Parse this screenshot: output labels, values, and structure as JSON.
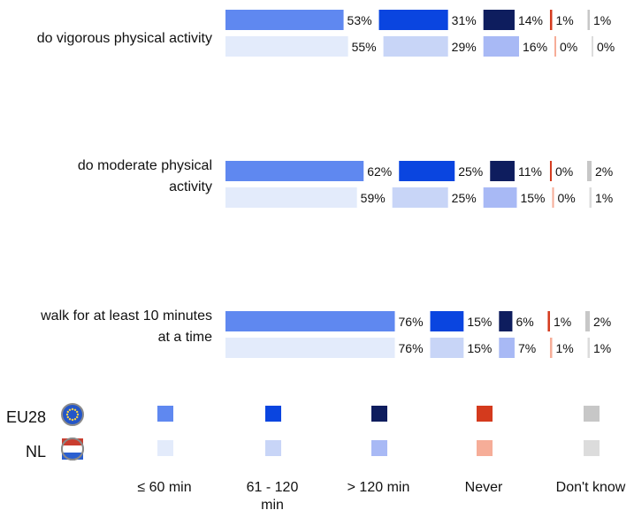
{
  "chart_data": {
    "type": "bar",
    "orientation": "horizontal",
    "stacked_layout": "segmented rows with value labels",
    "categories": [
      [
        "do vigorous physical activity"
      ],
      [
        "do moderate physical",
        "activity"
      ],
      [
        "walk for at least 10 minutes",
        "at a time"
      ]
    ],
    "rows": [
      {
        "series": "EU28",
        "values": [
          [
            53,
            31,
            14,
            1,
            1
          ],
          [
            62,
            25,
            11,
            0,
            2
          ],
          [
            76,
            15,
            6,
            1,
            2
          ]
        ]
      },
      {
        "series": "NL",
        "values": [
          [
            55,
            29,
            16,
            0,
            0
          ],
          [
            59,
            25,
            15,
            0,
            1
          ],
          [
            76,
            15,
            7,
            1,
            1
          ]
        ]
      }
    ],
    "segments": [
      {
        "label": "≤ 60 min",
        "colors": {
          "EU28": "#5f88f0",
          "NL": "#e3ebfb"
        }
      },
      {
        "label": "61 - 120 min",
        "colors": {
          "EU28": "#0a45e0",
          "NL": "#c8d5f7"
        }
      },
      {
        "label": "> 120 min",
        "colors": {
          "EU28": "#0e1d5e",
          "NL": "#a8b9f5"
        }
      },
      {
        "label": "Never",
        "colors": {
          "EU28": "#d43a1d",
          "NL": "#f6ad98"
        }
      },
      {
        "label": "Don't know",
        "colors": {
          "EU28": "#c7c7c7",
          "NL": "#dcdcdc"
        }
      }
    ],
    "legend": {
      "placement": "bottom",
      "series_labels": [
        "EU28",
        "NL"
      ],
      "category_labels": [
        "≤ 60 min",
        "61 - 120 min",
        "> 120 min",
        "Never",
        "Don't know"
      ]
    },
    "value_suffix": "%",
    "grid": false
  }
}
